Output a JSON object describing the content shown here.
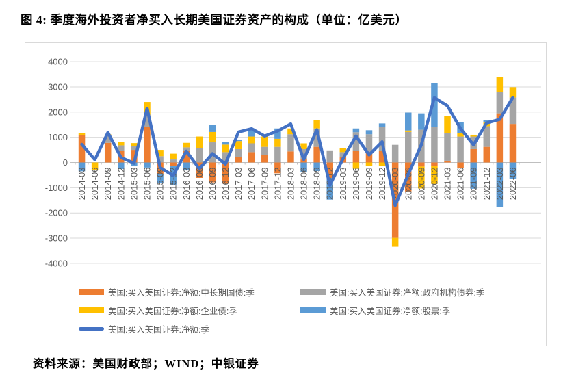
{
  "title": "图 4: 季度海外投资者净买入长期美国证券资产的构成（单位：亿美元）",
  "source": "资料来源：美国财政部；WIND；中银证券",
  "colors": {
    "treasury": "#ED7D31",
    "agency": "#A5A5A5",
    "corporate": "#FFC000",
    "stocks": "#5B9BD5",
    "total_line": "#4472C4",
    "gridline": "#D9D9D9",
    "axis": "#BFBFBF",
    "axis_text": "#595959"
  },
  "chart_data": {
    "type": "bar",
    "subtype": "stacked-bars-with-line-overlay",
    "unit": "亿美元",
    "grid": true,
    "legend_position": "bottom",
    "ylim": [
      -4000,
      4000
    ],
    "ytick_step": 1000,
    "y_ticks": [
      4000,
      3000,
      2000,
      1000,
      0,
      -1000,
      -2000,
      -3000,
      -4000
    ],
    "categories": [
      "2014-03",
      "2014-06",
      "2014-09",
      "2014-12",
      "2015-03",
      "2015-06",
      "2015-09",
      "2015-12",
      "2016-03",
      "2016-06",
      "2016-09",
      "2016-12",
      "2017-03",
      "2017-06",
      "2017-09",
      "2017-12",
      "2018-03",
      "2018-06",
      "2018-09",
      "2018-12",
      "2019-03",
      "2019-06",
      "2019-09",
      "2019-12",
      "2020-03",
      "2020-06",
      "2020-09",
      "2020-12",
      "2021-03",
      "2021-06",
      "2021-09",
      "2021-12",
      "2022-03",
      "2022-06"
    ],
    "series": [
      {
        "name": "美国:买入美国证券:净额:中长期国债:季",
        "type": "bar",
        "color": "#ED7D31",
        "values": [
          1100,
          0,
          780,
          450,
          500,
          1400,
          -450,
          -150,
          450,
          -610,
          -790,
          -840,
          210,
          410,
          300,
          -430,
          440,
          120,
          620,
          -610,
          210,
          450,
          420,
          450,
          -2990,
          -1150,
          -160,
          -150,
          70,
          -230,
          530,
          620,
          1950,
          1530
        ]
      },
      {
        "name": "美国:买入美国证券:净额:政府机构债券:季",
        "type": "bar",
        "color": "#A5A5A5",
        "values": [
          0,
          0,
          270,
          230,
          150,
          450,
          250,
          120,
          150,
          570,
          800,
          410,
          320,
          350,
          320,
          620,
          680,
          410,
          730,
          480,
          200,
          750,
          700,
          950,
          700,
          1210,
          1300,
          1400,
          1090,
          1030,
          500,
          820,
          850,
          1050
        ]
      },
      {
        "name": "美国:买入美国证券:净额:企业债:季",
        "type": "bar",
        "color": "#FFC000",
        "values": [
          80,
          -290,
          70,
          120,
          120,
          550,
          250,
          230,
          180,
          460,
          410,
          300,
          320,
          270,
          410,
          320,
          230,
          230,
          320,
          0,
          170,
          -250,
          -150,
          -150,
          -350,
          60,
          -870,
          -700,
          680,
          140,
          70,
          150,
          600,
          410
        ]
      },
      {
        "name": "美国:买入美国证券:净额:股票:季",
        "type": "bar",
        "color": "#5B9BD5",
        "values": [
          -350,
          0,
          0,
          -260,
          -150,
          -200,
          -350,
          -730,
          -290,
          0,
          270,
          90,
          60,
          320,
          0,
          410,
          0,
          -380,
          -340,
          -860,
          0,
          150,
          160,
          150,
          0,
          710,
          650,
          1750,
          0,
          430,
          -1040,
          100,
          -1770,
          -650
        ]
      },
      {
        "name": "美国:买入美国证券:净额:季",
        "type": "line",
        "color": "#4472C4",
        "values": [
          720,
          110,
          1190,
          200,
          -30,
          2150,
          -200,
          -520,
          450,
          -250,
          350,
          -60,
          1210,
          1340,
          1050,
          1250,
          1530,
          120,
          1300,
          -900,
          150,
          1050,
          300,
          820,
          -1700,
          -470,
          700,
          2570,
          2250,
          1350,
          700,
          1570,
          1710,
          2570
        ]
      }
    ]
  }
}
